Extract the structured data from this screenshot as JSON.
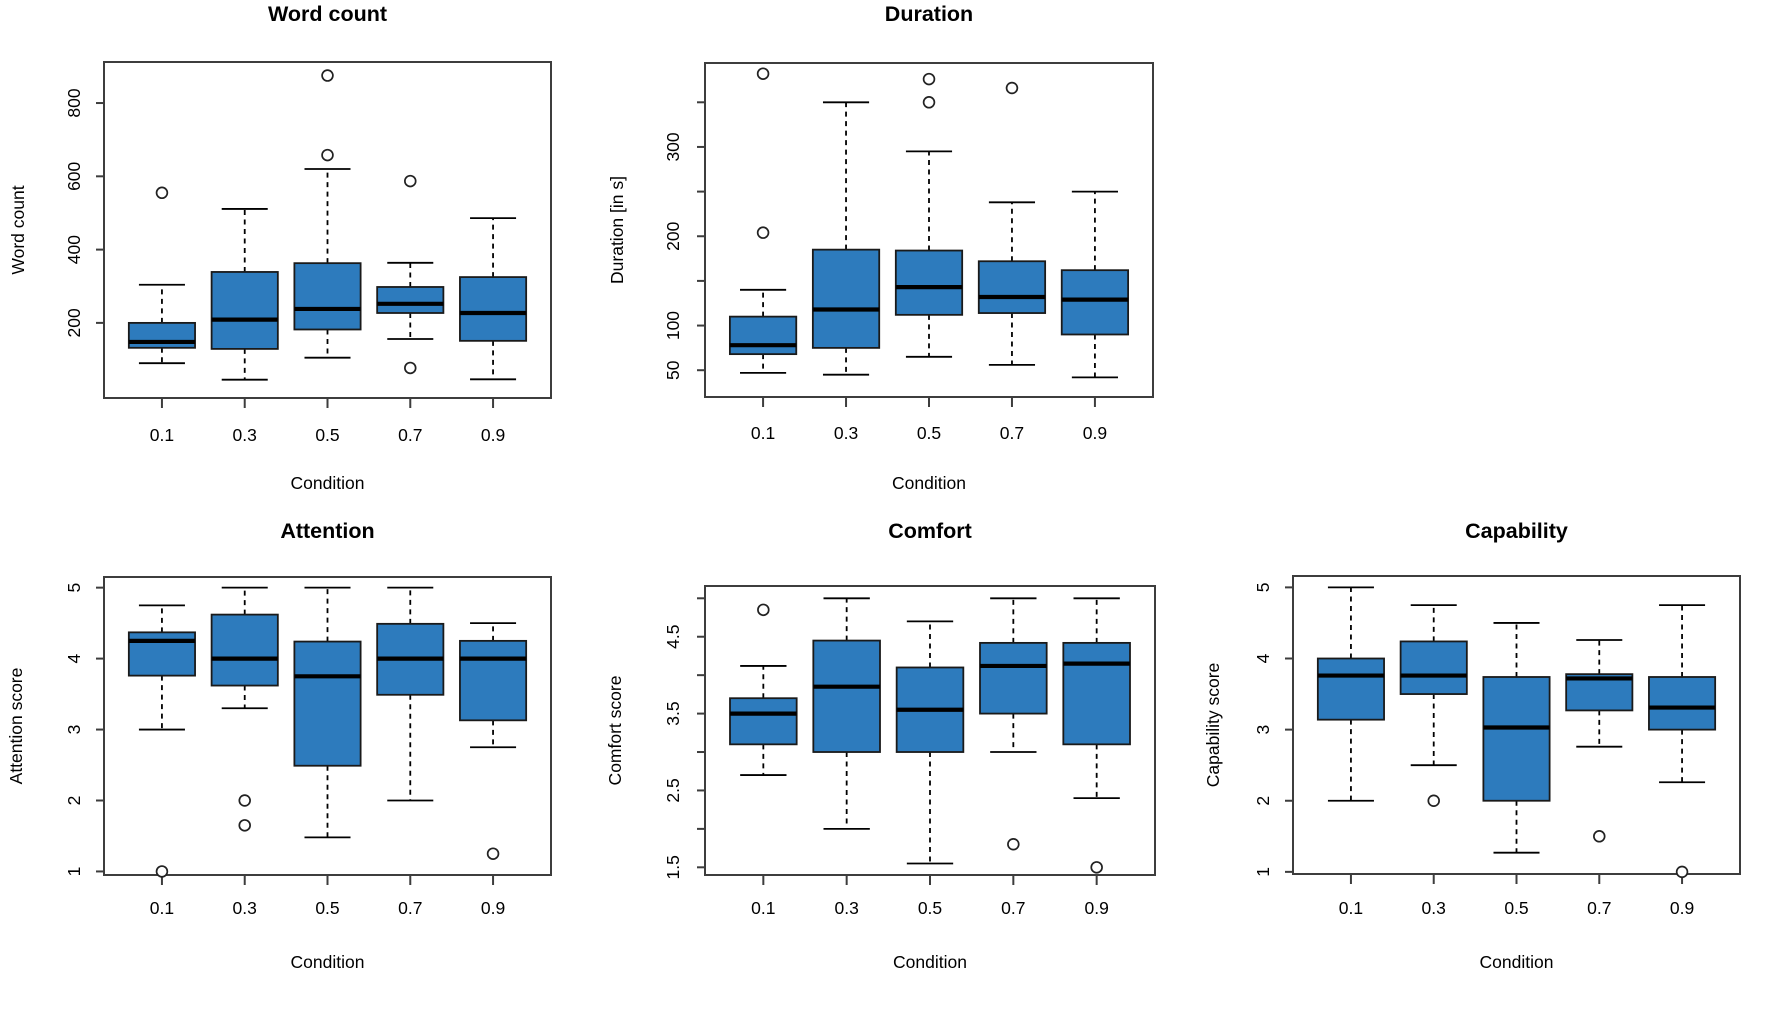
{
  "figure_background": "#ffffff",
  "colors": {
    "box_fill": "#2d7bbd",
    "box_stroke": "#1a1a1a",
    "median": "#000000",
    "whisker": "#000000",
    "axis": "#3d3d3d",
    "text": "#000000",
    "outlier_stroke": "#222222"
  },
  "chart_data": [
    {
      "type": "boxplot",
      "title": "Word count",
      "xlabel": "Condition",
      "ylabel": "Word count",
      "categories": [
        "0.1",
        "0.3",
        "0.5",
        "0.7",
        "0.9"
      ],
      "ylim": [
        -5,
        912
      ],
      "grid": false,
      "yticks": [
        {
          "value": 200,
          "label": "200"
        },
        {
          "value": 400,
          "label": "400"
        },
        {
          "value": 600,
          "label": "600"
        },
        {
          "value": 800,
          "label": "800"
        }
      ],
      "series": [
        {
          "category": "0.1",
          "low": 90,
          "q1": 132,
          "median": 148,
          "q3": 200,
          "high": 304,
          "outliers": [
            555
          ]
        },
        {
          "category": "0.3",
          "low": 45,
          "q1": 129,
          "median": 209,
          "q3": 339,
          "high": 511,
          "outliers": []
        },
        {
          "category": "0.5",
          "low": 105,
          "q1": 182,
          "median": 238,
          "q3": 363,
          "high": 620,
          "outliers": [
            658,
            875
          ]
        },
        {
          "category": "0.7",
          "low": 156,
          "q1": 227,
          "median": 252,
          "q3": 298,
          "high": 364,
          "outliers": [
            77,
            587
          ]
        },
        {
          "category": "0.9",
          "low": 46,
          "q1": 151,
          "median": 227,
          "q3": 325,
          "high": 486,
          "outliers": []
        }
      ]
    },
    {
      "type": "boxplot",
      "title": "Duration",
      "xlabel": "Condition",
      "ylabel": "Duration [in s]",
      "categories": [
        "0.1",
        "0.3",
        "0.5",
        "0.7",
        "0.9"
      ],
      "ylim": [
        20,
        394
      ],
      "grid": false,
      "yticks": [
        {
          "value": 50,
          "label": "50"
        },
        {
          "value": 100,
          "label": "100"
        },
        {
          "value": 150,
          "label": ""
        },
        {
          "value": 200,
          "label": "200"
        },
        {
          "value": 250,
          "label": ""
        },
        {
          "value": 300,
          "label": "300"
        },
        {
          "value": 350,
          "label": ""
        }
      ],
      "series": [
        {
          "category": "0.1",
          "low": 47,
          "q1": 68,
          "median": 78,
          "q3": 110,
          "high": 140,
          "outliers": [
            204,
            382
          ]
        },
        {
          "category": "0.3",
          "low": 45,
          "q1": 75,
          "median": 118,
          "q3": 185,
          "high": 350,
          "outliers": []
        },
        {
          "category": "0.5",
          "low": 65,
          "q1": 112,
          "median": 143,
          "q3": 184,
          "high": 295,
          "outliers": [
            350,
            376
          ]
        },
        {
          "category": "0.7",
          "low": 56,
          "q1": 114,
          "median": 132,
          "q3": 172,
          "high": 238,
          "outliers": [
            366
          ]
        },
        {
          "category": "0.9",
          "low": 42,
          "q1": 90,
          "median": 129,
          "q3": 162,
          "high": 250,
          "outliers": []
        }
      ]
    },
    {
      "type": "boxplot",
      "title": "Attention",
      "xlabel": "Condition",
      "ylabel": "Attention score",
      "categories": [
        "0.1",
        "0.3",
        "0.5",
        "0.7",
        "0.9"
      ],
      "ylim": [
        0.95,
        5.15
      ],
      "grid": false,
      "yticks": [
        {
          "value": 1,
          "label": "1"
        },
        {
          "value": 2,
          "label": "2"
        },
        {
          "value": 3,
          "label": "3"
        },
        {
          "value": 4,
          "label": "4"
        },
        {
          "value": 5,
          "label": "5"
        }
      ],
      "series": [
        {
          "category": "0.1",
          "low": 3.0,
          "q1": 3.76,
          "median": 4.25,
          "q3": 4.37,
          "high": 4.75,
          "outliers": [
            1.0
          ]
        },
        {
          "category": "0.3",
          "low": 3.3,
          "q1": 3.62,
          "median": 4.0,
          "q3": 4.62,
          "high": 5.0,
          "outliers": [
            2.0,
            1.65
          ]
        },
        {
          "category": "0.5",
          "low": 1.48,
          "q1": 2.49,
          "median": 3.75,
          "q3": 4.24,
          "high": 5.0,
          "outliers": []
        },
        {
          "category": "0.7",
          "low": 2.0,
          "q1": 3.49,
          "median": 4.0,
          "q3": 4.49,
          "high": 5.0,
          "outliers": []
        },
        {
          "category": "0.9",
          "low": 2.75,
          "q1": 3.13,
          "median": 4.0,
          "q3": 4.25,
          "high": 4.5,
          "outliers": [
            1.25
          ]
        }
      ]
    },
    {
      "type": "boxplot",
      "title": "Comfort",
      "xlabel": "Condition",
      "ylabel": "Comfort score",
      "categories": [
        "0.1",
        "0.3",
        "0.5",
        "0.7",
        "0.9"
      ],
      "ylim": [
        1.4,
        5.16
      ],
      "grid": false,
      "yticks": [
        {
          "value": 1.5,
          "label": "1.5"
        },
        {
          "value": 2.0,
          "label": ""
        },
        {
          "value": 2.5,
          "label": "2.5"
        },
        {
          "value": 3.0,
          "label": ""
        },
        {
          "value": 3.5,
          "label": "3.5"
        },
        {
          "value": 4.0,
          "label": ""
        },
        {
          "value": 4.5,
          "label": "4.5"
        },
        {
          "value": 5.0,
          "label": ""
        }
      ],
      "series": [
        {
          "category": "0.1",
          "low": 2.7,
          "q1": 3.1,
          "median": 3.5,
          "q3": 3.7,
          "high": 4.12,
          "outliers": [
            4.85
          ]
        },
        {
          "category": "0.3",
          "low": 2.0,
          "q1": 3.0,
          "median": 3.85,
          "q3": 4.45,
          "high": 5.0,
          "outliers": []
        },
        {
          "category": "0.5",
          "low": 1.55,
          "q1": 3.0,
          "median": 3.55,
          "q3": 4.1,
          "high": 4.7,
          "outliers": []
        },
        {
          "category": "0.7",
          "low": 3.0,
          "q1": 3.5,
          "median": 4.12,
          "q3": 4.42,
          "high": 5.0,
          "outliers": [
            1.8
          ]
        },
        {
          "category": "0.9",
          "low": 2.4,
          "q1": 3.1,
          "median": 4.15,
          "q3": 4.42,
          "high": 5.0,
          "outliers": [
            1.5
          ]
        }
      ]
    },
    {
      "type": "boxplot",
      "title": "Capability",
      "xlabel": "Condition",
      "ylabel": "Capability score",
      "categories": [
        "0.1",
        "0.3",
        "0.5",
        "0.7",
        "0.9"
      ],
      "ylim": [
        0.97,
        5.16
      ],
      "grid": false,
      "yticks": [
        {
          "value": 1,
          "label": "1"
        },
        {
          "value": 2,
          "label": "2"
        },
        {
          "value": 3,
          "label": "3"
        },
        {
          "value": 4,
          "label": "4"
        },
        {
          "value": 5,
          "label": "5"
        }
      ],
      "series": [
        {
          "category": "0.1",
          "low": 2.0,
          "q1": 3.14,
          "median": 3.76,
          "q3": 4.0,
          "high": 5.0,
          "outliers": []
        },
        {
          "category": "0.3",
          "low": 2.5,
          "q1": 3.5,
          "median": 3.76,
          "q3": 4.24,
          "high": 4.75,
          "outliers": [
            2.0
          ]
        },
        {
          "category": "0.5",
          "low": 1.27,
          "q1": 2.0,
          "median": 3.03,
          "q3": 3.74,
          "high": 4.5,
          "outliers": []
        },
        {
          "category": "0.7",
          "low": 2.76,
          "q1": 3.27,
          "median": 3.72,
          "q3": 3.78,
          "high": 4.26,
          "outliers": [
            1.5
          ]
        },
        {
          "category": "0.9",
          "low": 2.26,
          "q1": 3.0,
          "median": 3.31,
          "q3": 3.74,
          "high": 4.75,
          "outliers": [
            1.0
          ]
        }
      ]
    }
  ]
}
